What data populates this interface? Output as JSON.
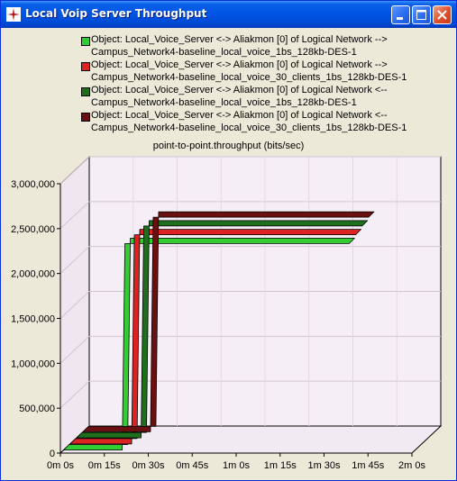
{
  "window": {
    "title": "Local Voip Server Throughput",
    "buttons": [
      "minimize",
      "maximize",
      "close"
    ]
  },
  "legend": [
    {
      "line1": "Object: Local_Voice_Server <-> Aliakmon [0] of Logical Network -->",
      "line2": "Campus_Network4-baseline_local_voice_1bs_128kb-DES-1",
      "color": "#33CC33"
    },
    {
      "line1": "Object: Local_Voice_Server <-> Aliakmon [0] of Logical Network -->",
      "line2": "Campus_Network4-baseline_local_voice_30_clients_1bs_128kb-DES-1",
      "color": "#DD2222"
    },
    {
      "line1": "Object: Local_Voice_Server <-> Aliakmon [0] of Logical Network <--",
      "line2": "Campus_Network4-baseline_local_voice_1bs_128kb-DES-1",
      "color": "#1E6E1E"
    },
    {
      "line1": "Object: Local_Voice_Server <-> Aliakmon [0] of Logical Network <--",
      "line2": "Campus_Network4-baseline_local_voice_30_clients_1bs_128kb-DES-1",
      "color": "#6B1010"
    }
  ],
  "chart_data": {
    "type": "line",
    "title": "point-to-point.throughput (bits/sec)",
    "xlabel": "",
    "ylabel": "",
    "ylim": [
      0,
      3000000
    ],
    "xlim": [
      0,
      120
    ],
    "x_tick_labels": [
      "0m 0s",
      "0m 15s",
      "0m 30s",
      "0m 45s",
      "1m 0s",
      "1m 15s",
      "1m 30s",
      "1m 45s",
      "2m 0s"
    ],
    "y_tick_labels": [
      "0",
      "500,000",
      "1,000,000",
      "1,500,000",
      "2,000,000",
      "2,500,000",
      "3,000,000"
    ],
    "y_ticks": [
      0,
      500000,
      1000000,
      1500000,
      2000000,
      2500000,
      3000000
    ],
    "grid": true,
    "series": [
      {
        "name": "Object: Local_Voice_Server <-> Aliakmon [0] of Logical Network --> Campus_Network4-baseline_local_voice_1bs_128kb-DES-1",
        "color": "#33CC33",
        "depth": 0,
        "x_start": 0,
        "x_step": 20,
        "x_end": 95,
        "low": 0,
        "high": 2300000
      },
      {
        "name": "Object: Local_Voice_Server <-> Aliakmon [0] of Logical Network --> Campus_Network4-baseline_local_voice_30_clients_1bs_128kb-DES-1",
        "color": "#DD2222",
        "depth": 1,
        "x_start": 0,
        "x_step": 21,
        "x_end": 95,
        "low": 0,
        "high": 2300000
      },
      {
        "name": "Object: Local_Voice_Server <-> Aliakmon [0] of Logical Network <-- Campus_Network4-baseline_local_voice_1bs_128kb-DES-1",
        "color": "#1E6E1E",
        "depth": 2,
        "x_start": 0,
        "x_step": 22,
        "x_end": 95,
        "low": 0,
        "high": 2300000
      },
      {
        "name": "Object: Local_Voice_Server <-> Aliakmon [0] of Logical Network <-- Campus_Network4-baseline_local_voice_30_clients_1bs_128kb-DES-1",
        "color": "#6B1010",
        "depth": 3,
        "x_start": 0,
        "x_step": 23,
        "x_end": 95,
        "low": 0,
        "high": 2300000
      }
    ]
  }
}
